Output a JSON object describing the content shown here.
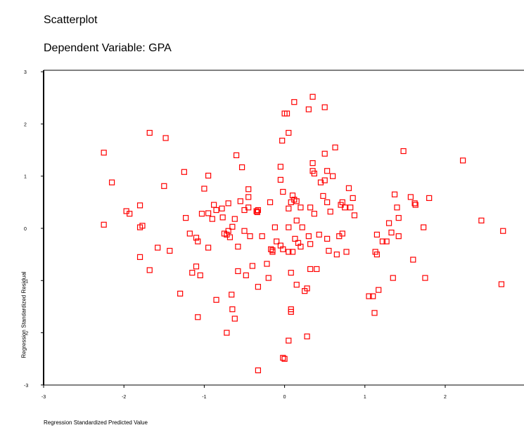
{
  "chart_data": {
    "type": "scatter",
    "title": "Scatterplot",
    "subtitle": "Dependent Variable: GPA",
    "xlabel": "Regression Standardized Predicted Value",
    "ylabel": "Regression Standardized Residual",
    "xlim": [
      -3,
      3
    ],
    "ylim": [
      -3,
      3
    ],
    "xticks": [
      "-3",
      "-2",
      "-1",
      "0",
      "1",
      "2"
    ],
    "yticks": [
      "-3",
      "-2",
      "-1",
      "0",
      "1",
      "2",
      "3"
    ],
    "marker_color": "#ff0000",
    "marker": "hollow-square",
    "grid": false,
    "points": [
      [
        -2.25,
        1.45
      ],
      [
        -2.25,
        0.07
      ],
      [
        -2.15,
        0.88
      ],
      [
        -1.97,
        0.33
      ],
      [
        -1.93,
        0.28
      ],
      [
        -1.8,
        0.44
      ],
      [
        -1.8,
        0.02
      ],
      [
        -1.77,
        0.05
      ],
      [
        -1.8,
        -0.55
      ],
      [
        -1.68,
        1.83
      ],
      [
        -1.68,
        -0.8
      ],
      [
        -1.58,
        -0.37
      ],
      [
        -1.48,
        1.73
      ],
      [
        -1.5,
        0.81
      ],
      [
        -1.43,
        -0.43
      ],
      [
        -1.3,
        -1.25
      ],
      [
        -1.25,
        1.08
      ],
      [
        -1.23,
        0.2
      ],
      [
        -1.18,
        -0.1
      ],
      [
        -1.15,
        -0.85
      ],
      [
        -1.1,
        -0.73
      ],
      [
        -1.1,
        -0.18
      ],
      [
        -1.08,
        -0.25
      ],
      [
        -1.08,
        -1.7
      ],
      [
        -1.05,
        -0.9
      ],
      [
        -1.03,
        0.28
      ],
      [
        -1.0,
        0.76
      ],
      [
        -0.95,
        1.01
      ],
      [
        -0.95,
        0.29
      ],
      [
        -0.95,
        -0.37
      ],
      [
        -0.9,
        0.18
      ],
      [
        -0.88,
        0.45
      ],
      [
        -0.85,
        0.35
      ],
      [
        -0.85,
        -1.37
      ],
      [
        -0.78,
        0.38
      ],
      [
        -0.77,
        0.21
      ],
      [
        -0.75,
        -0.1
      ],
      [
        -0.72,
        -0.12
      ],
      [
        -0.72,
        -2.0
      ],
      [
        -0.7,
        0.48
      ],
      [
        -0.7,
        -0.05
      ],
      [
        -0.68,
        -0.17
      ],
      [
        -0.66,
        -1.27
      ],
      [
        -0.65,
        0.03
      ],
      [
        -0.65,
        -1.55
      ],
      [
        -0.62,
        0.18
      ],
      [
        -0.62,
        -1.73
      ],
      [
        -0.6,
        1.4
      ],
      [
        -0.58,
        -0.35
      ],
      [
        -0.58,
        -0.82
      ],
      [
        -0.55,
        0.52
      ],
      [
        -0.53,
        1.17
      ],
      [
        -0.5,
        -0.05
      ],
      [
        -0.5,
        0.35
      ],
      [
        -0.48,
        -0.9
      ],
      [
        -0.45,
        0.75
      ],
      [
        -0.45,
        0.6
      ],
      [
        -0.45,
        0.4
      ],
      [
        -0.43,
        -0.15
      ],
      [
        -0.4,
        -0.72
      ],
      [
        -0.35,
        0.33
      ],
      [
        -0.34,
        0.31
      ],
      [
        -0.33,
        0.35
      ],
      [
        -0.33,
        -1.12
      ],
      [
        -0.33,
        -2.72
      ],
      [
        -0.28,
        -0.15
      ],
      [
        -0.22,
        -0.68
      ],
      [
        -0.2,
        -0.95
      ],
      [
        -0.18,
        0.5
      ],
      [
        -0.17,
        -0.4
      ],
      [
        -0.15,
        -0.45
      ],
      [
        -0.15,
        -0.42
      ],
      [
        -0.12,
        0.02
      ],
      [
        -0.1,
        -0.25
      ],
      [
        -0.05,
        1.18
      ],
      [
        -0.05,
        0.93
      ],
      [
        -0.05,
        -0.33
      ],
      [
        -0.03,
        1.68
      ],
      [
        -0.02,
        0.7
      ],
      [
        -0.02,
        -0.4
      ],
      [
        -0.02,
        -2.48
      ],
      [
        0.0,
        -2.5
      ],
      [
        0.0,
        2.2
      ],
      [
        0.03,
        2.2
      ],
      [
        0.05,
        0.02
      ],
      [
        0.05,
        0.38
      ],
      [
        0.05,
        -0.45
      ],
      [
        0.05,
        1.83
      ],
      [
        0.05,
        -2.15
      ],
      [
        0.08,
        -1.55
      ],
      [
        0.08,
        -1.6
      ],
      [
        0.08,
        -0.85
      ],
      [
        0.08,
        0.5
      ],
      [
        0.1,
        0.63
      ],
      [
        0.1,
        -0.45
      ],
      [
        0.12,
        2.42
      ],
      [
        0.12,
        0.55
      ],
      [
        0.13,
        -0.2
      ],
      [
        0.15,
        -1.08
      ],
      [
        0.15,
        0.15
      ],
      [
        0.15,
        0.52
      ],
      [
        0.17,
        -0.28
      ],
      [
        0.2,
        0.4
      ],
      [
        0.2,
        -0.35
      ],
      [
        0.22,
        0.02
      ],
      [
        0.25,
        -1.2
      ],
      [
        0.28,
        -1.15
      ],
      [
        0.28,
        -2.07
      ],
      [
        0.3,
        -0.15
      ],
      [
        0.3,
        2.28
      ],
      [
        0.32,
        0.4
      ],
      [
        0.32,
        -0.78
      ],
      [
        0.32,
        -0.3
      ],
      [
        0.35,
        1.25
      ],
      [
        0.35,
        1.1
      ],
      [
        0.35,
        2.52
      ],
      [
        0.37,
        1.05
      ],
      [
        0.37,
        0.28
      ],
      [
        0.4,
        -0.78
      ],
      [
        0.43,
        -0.12
      ],
      [
        0.45,
        0.88
      ],
      [
        0.48,
        0.62
      ],
      [
        0.5,
        1.43
      ],
      [
        0.5,
        2.32
      ],
      [
        0.5,
        0.92
      ],
      [
        0.53,
        1.1
      ],
      [
        0.53,
        0.5
      ],
      [
        0.53,
        -0.2
      ],
      [
        0.55,
        -0.43
      ],
      [
        0.57,
        0.32
      ],
      [
        0.6,
        1.0
      ],
      [
        0.63,
        1.55
      ],
      [
        0.65,
        -0.5
      ],
      [
        0.68,
        -0.15
      ],
      [
        0.7,
        0.45
      ],
      [
        0.72,
        0.5
      ],
      [
        0.72,
        -0.1
      ],
      [
        0.75,
        0.4
      ],
      [
        0.77,
        -0.45
      ],
      [
        0.8,
        0.77
      ],
      [
        0.82,
        0.4
      ],
      [
        0.85,
        0.58
      ],
      [
        0.87,
        0.25
      ],
      [
        1.05,
        -1.3
      ],
      [
        1.1,
        -1.3
      ],
      [
        1.12,
        -1.62
      ],
      [
        1.13,
        -0.45
      ],
      [
        1.15,
        -0.12
      ],
      [
        1.15,
        -0.5
      ],
      [
        1.17,
        -1.18
      ],
      [
        1.22,
        -0.25
      ],
      [
        1.27,
        -0.25
      ],
      [
        1.3,
        0.1
      ],
      [
        1.33,
        -0.08
      ],
      [
        1.35,
        -0.95
      ],
      [
        1.37,
        0.65
      ],
      [
        1.4,
        0.4
      ],
      [
        1.42,
        0.2
      ],
      [
        1.42,
        -0.15
      ],
      [
        1.48,
        1.48
      ],
      [
        1.57,
        0.6
      ],
      [
        1.6,
        -0.6
      ],
      [
        1.62,
        0.48
      ],
      [
        1.63,
        0.45
      ],
      [
        1.73,
        0.02
      ],
      [
        1.75,
        -0.95
      ],
      [
        1.8,
        0.58
      ],
      [
        2.22,
        1.3
      ],
      [
        2.45,
        0.15
      ],
      [
        2.7,
        -1.07
      ],
      [
        2.72,
        -0.05
      ]
    ]
  }
}
